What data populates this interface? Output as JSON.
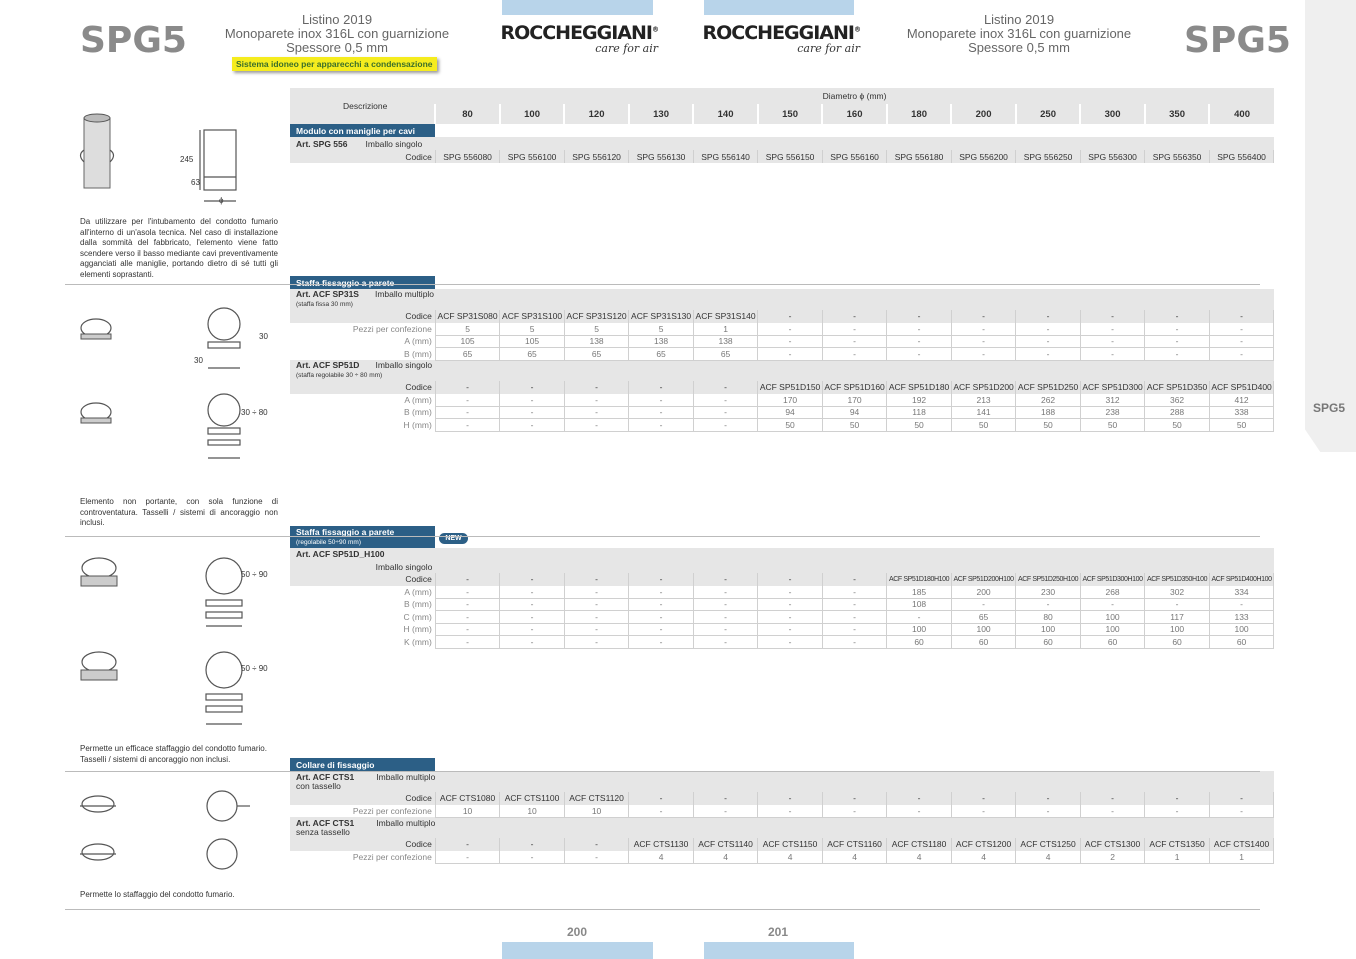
{
  "header": {
    "spg_left": "SPG5",
    "spg_right": "SPG5",
    "title1": "Listino 2019",
    "title2": "Monoparete inox 316L con guarnizione",
    "title3": "Spessore 0,5 mm",
    "condens": "Sistema idoneo per apparecchi a condensazione",
    "logo_big": "ROCCHEGGIANI",
    "logo_reg": "®",
    "logo_sub": "care for air"
  },
  "sidetab": "SPG5",
  "pages": {
    "left": "200",
    "right": "201"
  },
  "diameters": [
    "80",
    "100",
    "120",
    "130",
    "140",
    "150",
    "160",
    "180",
    "200",
    "250",
    "300",
    "350",
    "400"
  ],
  "table_head": {
    "desc": "Descrizione",
    "diam": "Diametro ϕ (mm)"
  },
  "s1": {
    "title": "Modulo con maniglie per cavi",
    "art": "Art. SPG 556",
    "pack": "Imballo singolo",
    "code_lab": "Codice",
    "codes": [
      "SPG 556080",
      "SPG 556100",
      "SPG 556120",
      "SPG 556130",
      "SPG 556140",
      "SPG 556150",
      "SPG 556160",
      "SPG 556180",
      "SPG 556200",
      "SPG 556250",
      "SPG 556300",
      "SPG 556350",
      "SPG 556400"
    ],
    "desc": "Da utilizzare per l'intubamento del condotto fumario all'interno di un'asola tecnica. Nel caso di installazione dalla sommità del fabbricato, l'elemento viene fatto scendere verso il basso mediante cavi preventivamente agganciati alle maniglie, portando dietro di sé tutti gli elementi soprastanti.",
    "dim_h": "245",
    "dim_b": "63",
    "dim_d": "ϕ"
  },
  "s2": {
    "title": "Staffa fissaggio a parete",
    "a_art": "Art. ACF SP31S",
    "a_pack": "Imballo multiplo",
    "a_note": "(staffa fissa 30 mm)",
    "a_rows": [
      {
        "lab": "Codice",
        "vals": [
          "ACF SP31S080",
          "ACF SP31S100",
          "ACF SP31S120",
          "ACF SP31S130",
          "ACF SP31S140",
          "-",
          "-",
          "-",
          "-",
          "-",
          "-",
          "-",
          "-"
        ]
      },
      {
        "lab": "Pezzi per confezione",
        "vals": [
          "5",
          "5",
          "5",
          "5",
          "1",
          "-",
          "-",
          "-",
          "-",
          "-",
          "-",
          "-",
          "-"
        ]
      },
      {
        "lab": "A (mm)",
        "vals": [
          "105",
          "105",
          "138",
          "138",
          "138",
          "-",
          "-",
          "-",
          "-",
          "-",
          "-",
          "-",
          "-"
        ]
      },
      {
        "lab": "B (mm)",
        "vals": [
          "65",
          "65",
          "65",
          "65",
          "65",
          "-",
          "-",
          "-",
          "-",
          "-",
          "-",
          "-",
          "-"
        ]
      }
    ],
    "b_art": "Art. ACF SP51D",
    "b_pack": "Imballo singolo",
    "b_note": "(staffa regolabile 30 ÷ 80 mm)",
    "b_rows": [
      {
        "lab": "Codice",
        "vals": [
          "-",
          "-",
          "-",
          "-",
          "-",
          "ACF SP51D150",
          "ACF SP51D160",
          "ACF SP51D180",
          "ACF SP51D200",
          "ACF SP51D250",
          "ACF SP51D300",
          "ACF SP51D350",
          "ACF SP51D400"
        ]
      },
      {
        "lab": "A (mm)",
        "vals": [
          "-",
          "-",
          "-",
          "-",
          "-",
          "170",
          "170",
          "192",
          "213",
          "262",
          "312",
          "362",
          "412"
        ]
      },
      {
        "lab": "B (mm)",
        "vals": [
          "-",
          "-",
          "-",
          "-",
          "-",
          "94",
          "94",
          "118",
          "141",
          "188",
          "238",
          "288",
          "338"
        ]
      },
      {
        "lab": "H (mm)",
        "vals": [
          "-",
          "-",
          "-",
          "-",
          "-",
          "50",
          "50",
          "50",
          "50",
          "50",
          "50",
          "50",
          "50"
        ]
      }
    ],
    "desc": "Elemento non portante, con sola funzione di controventatura. Tasselli / sistemi di ancoraggio non inclusi.",
    "dim_30": "30",
    "dim_3080": "30 ÷ 80"
  },
  "s3": {
    "title": "Staffa fissaggio a parete",
    "note": "(regolabile 50÷90 mm)",
    "new": "NEW",
    "art": "Art. ACF SP51D_H100",
    "pack": "Imballo singolo",
    "rows": [
      {
        "lab": "Codice",
        "vals": [
          "-",
          "-",
          "-",
          "-",
          "-",
          "-",
          "-",
          "ACF SP51D180H100",
          "ACF SP51D200H100",
          "ACF SP51D250H100",
          "ACF SP51D300H100",
          "ACF SP51D350H100",
          "ACF SP51D400H100"
        ]
      },
      {
        "lab": "A (mm)",
        "vals": [
          "-",
          "-",
          "-",
          "-",
          "-",
          "-",
          "-",
          "185",
          "200",
          "230",
          "268",
          "302",
          "334"
        ]
      },
      {
        "lab": "B (mm)",
        "vals": [
          "-",
          "-",
          "-",
          "-",
          "-",
          "-",
          "-",
          "108",
          "-",
          "-",
          "-",
          "-",
          "-"
        ]
      },
      {
        "lab": "C (mm)",
        "vals": [
          "-",
          "-",
          "-",
          "-",
          "-",
          "-",
          "-",
          "-",
          "65",
          "80",
          "100",
          "117",
          "133"
        ]
      },
      {
        "lab": "H (mm)",
        "vals": [
          "-",
          "-",
          "-",
          "-",
          "-",
          "-",
          "-",
          "100",
          "100",
          "100",
          "100",
          "100",
          "100"
        ]
      },
      {
        "lab": "K (mm)",
        "vals": [
          "-",
          "-",
          "-",
          "-",
          "-",
          "-",
          "-",
          "60",
          "60",
          "60",
          "60",
          "60",
          "60"
        ]
      }
    ],
    "desc": "Permette un efficace staffaggio del condotto fumario. Tasselli / sistemi di ancoraggio non inclusi.",
    "dim": "50 ÷ 90"
  },
  "s4": {
    "title": "Collare di fissaggio",
    "a_art": "Art. ACF CTS1",
    "a_pack": "Imballo multiplo",
    "a_note": "con tassello",
    "a_rows": [
      {
        "lab": "Codice",
        "vals": [
          "ACF CTS1080",
          "ACF CTS1100",
          "ACF CTS1120",
          "-",
          "-",
          "-",
          "-",
          "-",
          "-",
          "-",
          "-",
          "-",
          "-"
        ]
      },
      {
        "lab": "Pezzi per confezione",
        "vals": [
          "10",
          "10",
          "10",
          "-",
          "-",
          "-",
          "-",
          "-",
          "-",
          "-",
          "-",
          "-",
          "-"
        ]
      }
    ],
    "b_art": "Art. ACF CTS1",
    "b_pack": "Imballo multiplo",
    "b_note": "senza tassello",
    "b_rows": [
      {
        "lab": "Codice",
        "vals": [
          "-",
          "-",
          "-",
          "ACF CTS1130",
          "ACF CTS1140",
          "ACF CTS1150",
          "ACF CTS1160",
          "ACF CTS1180",
          "ACF CTS1200",
          "ACF CTS1250",
          "ACF CTS1300",
          "ACF CTS1350",
          "ACF CTS1400"
        ]
      },
      {
        "lab": "Pezzi per confezione",
        "vals": [
          "-",
          "-",
          "-",
          "4",
          "4",
          "4",
          "4",
          "4",
          "4",
          "4",
          "2",
          "1",
          "1"
        ]
      }
    ],
    "desc": "Permette lo staffaggio del condotto fumario."
  }
}
